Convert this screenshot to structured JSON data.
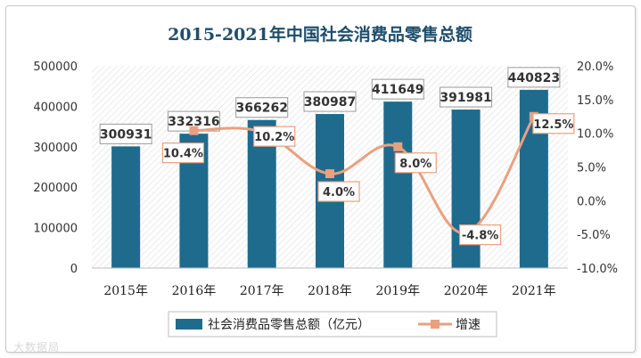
{
  "chart_data": {
    "type": "bar+line",
    "title": "2015-2021年中国社会消费品零售总额",
    "categories": [
      "2015年",
      "2016年",
      "2017年",
      "2018年",
      "2019年",
      "2020年",
      "2021年"
    ],
    "series": [
      {
        "name": "社会消费品零售总额（亿元）",
        "type": "bar",
        "axis": "left",
        "values": [
          300931,
          332316,
          366262,
          380987,
          411649,
          391981,
          440823
        ],
        "labels": [
          "300931",
          "332316",
          "366262",
          "380987",
          "411649",
          "391981",
          "440823"
        ]
      },
      {
        "name": "增速",
        "type": "line",
        "axis": "right",
        "values": [
          null,
          10.4,
          10.2,
          4.0,
          8.0,
          -4.8,
          12.5
        ],
        "labels": [
          "",
          "10.4%",
          "10.2%",
          "4.0%",
          "8.0%",
          "-4.8%",
          "12.5%"
        ]
      }
    ],
    "y_left": {
      "min": 0,
      "max": 500000,
      "ticks": [
        0,
        100000,
        200000,
        300000,
        400000,
        500000
      ],
      "tick_labels": [
        "0",
        "100000",
        "200000",
        "300000",
        "400000",
        "500000"
      ]
    },
    "y_right": {
      "min": -10,
      "max": 20,
      "ticks": [
        -10,
        -5,
        0,
        5,
        10,
        15,
        20
      ],
      "tick_labels": [
        "-10.0%",
        "-5.0%",
        "0.0%",
        "5.0%",
        "10.0%",
        "15.0%",
        "20.0%"
      ]
    },
    "legend_position": "bottom",
    "colors": {
      "bar": "#1f6b8e",
      "line": "#e9a07f",
      "title": "#1f4e6b",
      "label_border": "#e9a07f"
    }
  },
  "watermark": "大数据局"
}
